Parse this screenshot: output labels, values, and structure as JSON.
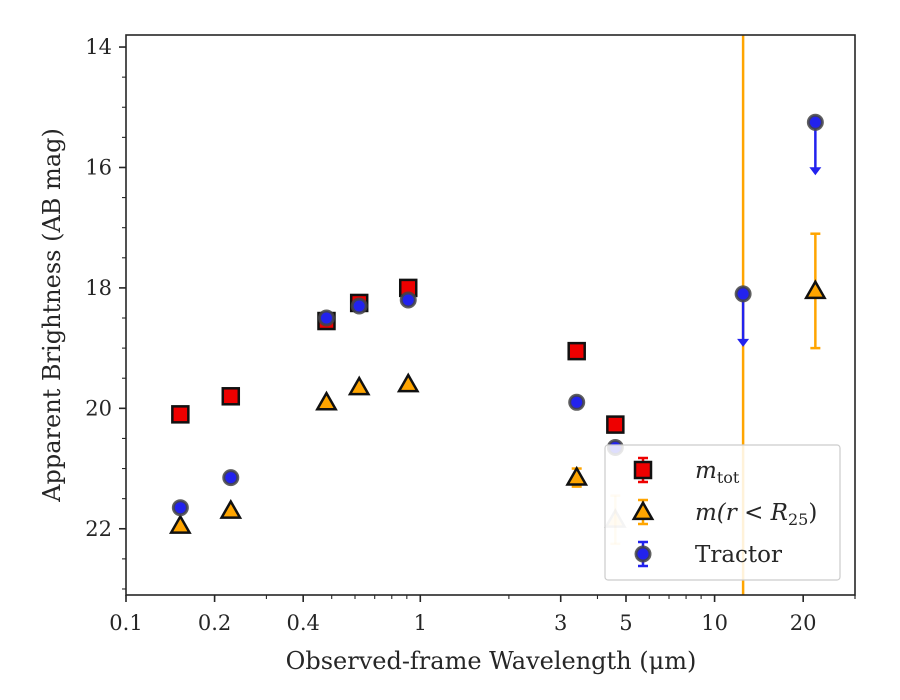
{
  "chart_data": {
    "type": "scatter",
    "xlabel": "Observed-frame Wavelength (μm)",
    "ylabel": "Apparent Brightness (AB mag)",
    "xscale": "log",
    "xlim": [
      0.1,
      30
    ],
    "ylim": [
      23.1,
      13.8
    ],
    "y_inverted": true,
    "xticks": [
      {
        "value": 0.1,
        "label": "0.1"
      },
      {
        "value": 0.2,
        "label": "0.2"
      },
      {
        "value": 0.4,
        "label": "0.4"
      },
      {
        "value": 1,
        "label": "1"
      },
      {
        "value": 3,
        "label": "3"
      },
      {
        "value": 5,
        "label": "5"
      },
      {
        "value": 10,
        "label": "10"
      },
      {
        "value": 20,
        "label": "20"
      }
    ],
    "yticks": [
      {
        "value": 14,
        "label": "14"
      },
      {
        "value": 16,
        "label": "16"
      },
      {
        "value": 18,
        "label": "18"
      },
      {
        "value": 20,
        "label": "20"
      },
      {
        "value": 22,
        "label": "22"
      }
    ],
    "legend_position": "lower-right",
    "vertical_line": {
      "x": 12.5,
      "color": "#ffa500"
    },
    "series": [
      {
        "name": "m_tot",
        "legend_main": "m",
        "legend_sub": "tot",
        "marker": "square",
        "color": "#ee0000",
        "edge": "#111111",
        "points": [
          {
            "x": 0.153,
            "y": 20.1
          },
          {
            "x": 0.227,
            "y": 19.8
          },
          {
            "x": 0.48,
            "y": 18.55
          },
          {
            "x": 0.62,
            "y": 18.25
          },
          {
            "x": 0.91,
            "y": 18.0
          },
          {
            "x": 3.4,
            "y": 19.05
          },
          {
            "x": 4.6,
            "y": 20.27
          }
        ]
      },
      {
        "name": "m(r<R25)",
        "legend_main": "m(r < R",
        "legend_sub": "25",
        "legend_tail": ")",
        "marker": "triangle",
        "color": "#ffa500",
        "edge": "#111111",
        "points": [
          {
            "x": 0.153,
            "y": 21.95
          },
          {
            "x": 0.227,
            "y": 21.7
          },
          {
            "x": 0.48,
            "y": 19.9
          },
          {
            "x": 0.62,
            "y": 19.65
          },
          {
            "x": 0.91,
            "y": 19.6
          },
          {
            "x": 3.4,
            "y": 21.15,
            "err": 0.15
          },
          {
            "x": 4.6,
            "y": 21.85,
            "err": 0.4,
            "faded": true
          },
          {
            "x": 22,
            "y": 18.05,
            "err": 0.95
          }
        ]
      },
      {
        "name": "Tractor",
        "legend_main": "Tractor",
        "marker": "circle",
        "color": "#2222ee",
        "edge": "#444444",
        "points": [
          {
            "x": 0.153,
            "y": 21.65
          },
          {
            "x": 0.227,
            "y": 21.15
          },
          {
            "x": 0.48,
            "y": 18.5
          },
          {
            "x": 0.62,
            "y": 18.3
          },
          {
            "x": 0.91,
            "y": 18.2
          },
          {
            "x": 3.4,
            "y": 19.9
          },
          {
            "x": 4.6,
            "y": 20.65
          },
          {
            "x": 12.5,
            "y": 18.1,
            "upper_limit": true
          },
          {
            "x": 22,
            "y": 15.25,
            "upper_limit": true
          }
        ]
      }
    ]
  }
}
